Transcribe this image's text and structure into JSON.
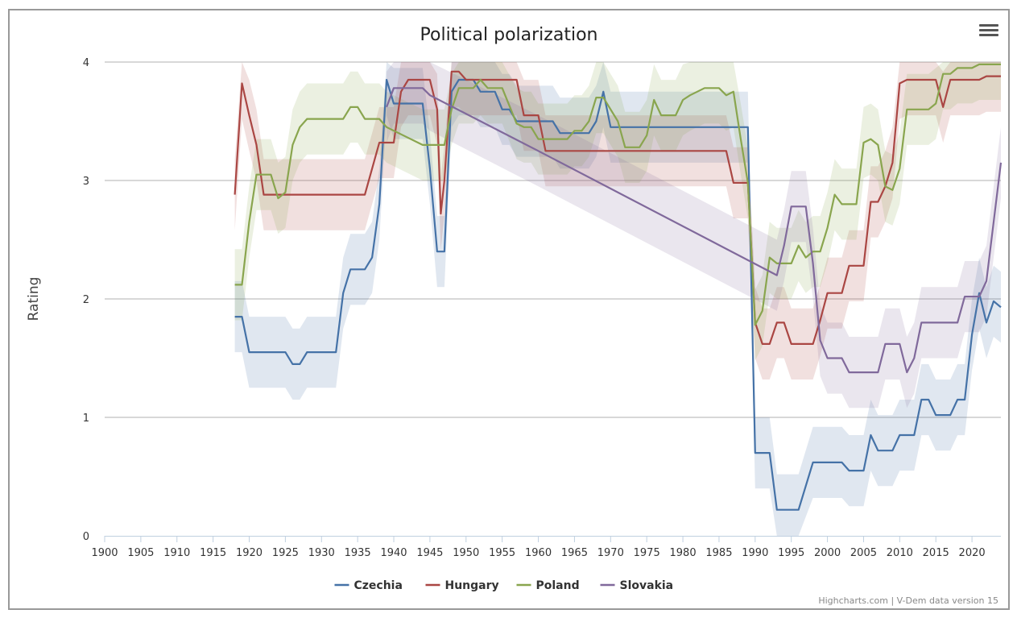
{
  "credits": "Highcharts.com | V-Dem data version 15",
  "menu_icon": "hamburger-menu-icon",
  "chart_data": {
    "type": "line",
    "title": "Political polarization",
    "xlabel": "",
    "ylabel": "Rating",
    "xlim": [
      1900,
      2024
    ],
    "ylim": [
      0,
      4
    ],
    "x_ticks": [
      1900,
      1905,
      1910,
      1915,
      1920,
      1925,
      1930,
      1935,
      1940,
      1945,
      1950,
      1955,
      1960,
      1965,
      1970,
      1975,
      1980,
      1985,
      1990,
      1995,
      2000,
      2005,
      2010,
      2015,
      2020
    ],
    "y_ticks": [
      0,
      1,
      2,
      3,
      4
    ],
    "grid": "horizontal",
    "legend_position": "bottom-center",
    "band_halfwidth": 0.3,
    "series": [
      {
        "name": "Czechia",
        "color": "#4572A7",
        "points": [
          [
            1918,
            1.85
          ],
          [
            1919,
            1.85
          ],
          [
            1920,
            1.55
          ],
          [
            1921,
            1.55
          ],
          [
            1925,
            1.55
          ],
          [
            1926,
            1.45
          ],
          [
            1927,
            1.45
          ],
          [
            1928,
            1.55
          ],
          [
            1932,
            1.55
          ],
          [
            1933,
            2.05
          ],
          [
            1934,
            2.25
          ],
          [
            1936,
            2.25
          ],
          [
            1937,
            2.35
          ],
          [
            1938,
            2.8
          ],
          [
            1939,
            3.85
          ],
          [
            1940,
            3.65
          ],
          [
            1944,
            3.65
          ],
          [
            1945,
            3.1
          ],
          [
            1946,
            2.4
          ],
          [
            1947,
            2.4
          ],
          [
            1948,
            3.75
          ],
          [
            1949,
            3.85
          ],
          [
            1951,
            3.85
          ],
          [
            1952,
            3.75
          ],
          [
            1954,
            3.75
          ],
          [
            1955,
            3.6
          ],
          [
            1956,
            3.6
          ],
          [
            1957,
            3.5
          ],
          [
            1962,
            3.5
          ],
          [
            1963,
            3.4
          ],
          [
            1967,
            3.4
          ],
          [
            1968,
            3.5
          ],
          [
            1969,
            3.75
          ],
          [
            1970,
            3.45
          ],
          [
            1989,
            3.45
          ],
          [
            1990,
            0.7
          ],
          [
            1992,
            0.7
          ],
          [
            1993,
            0.22
          ],
          [
            1996,
            0.22
          ],
          [
            1998,
            0.62
          ],
          [
            2002,
            0.62
          ],
          [
            2003,
            0.55
          ],
          [
            2005,
            0.55
          ],
          [
            2006,
            0.85
          ],
          [
            2007,
            0.72
          ],
          [
            2009,
            0.72
          ],
          [
            2010,
            0.85
          ],
          [
            2012,
            0.85
          ],
          [
            2013,
            1.15
          ],
          [
            2014,
            1.15
          ],
          [
            2015,
            1.02
          ],
          [
            2017,
            1.02
          ],
          [
            2018,
            1.15
          ],
          [
            2019,
            1.15
          ],
          [
            2020,
            1.7
          ],
          [
            2021,
            2.05
          ],
          [
            2022,
            1.8
          ],
          [
            2023,
            1.98
          ],
          [
            2024,
            1.93
          ]
        ]
      },
      {
        "name": "Hungary",
        "color": "#AA4643",
        "points": [
          [
            1918,
            2.88
          ],
          [
            1919,
            3.82
          ],
          [
            1920,
            3.55
          ],
          [
            1921,
            3.3
          ],
          [
            1922,
            2.88
          ],
          [
            1936,
            2.88
          ],
          [
            1937,
            3.1
          ],
          [
            1938,
            3.32
          ],
          [
            1940,
            3.32
          ],
          [
            1941,
            3.75
          ],
          [
            1942,
            3.85
          ],
          [
            1945,
            3.85
          ],
          [
            1946,
            3.6
          ],
          [
            1946.5,
            2.72
          ],
          [
            1947,
            3.0
          ],
          [
            1948,
            3.92
          ],
          [
            1949,
            3.92
          ],
          [
            1950,
            3.85
          ],
          [
            1957,
            3.85
          ],
          [
            1958,
            3.55
          ],
          [
            1960,
            3.55
          ],
          [
            1961,
            3.25
          ],
          [
            1986,
            3.25
          ],
          [
            1987,
            2.98
          ],
          [
            1989,
            2.98
          ],
          [
            1990,
            1.8
          ],
          [
            1991,
            1.62
          ],
          [
            1992,
            1.62
          ],
          [
            1993,
            1.8
          ],
          [
            1994,
            1.8
          ],
          [
            1995,
            1.62
          ],
          [
            1998,
            1.62
          ],
          [
            1999,
            1.82
          ],
          [
            2000,
            2.05
          ],
          [
            2002,
            2.05
          ],
          [
            2003,
            2.28
          ],
          [
            2005,
            2.28
          ],
          [
            2006,
            2.82
          ],
          [
            2007,
            2.82
          ],
          [
            2008,
            2.95
          ],
          [
            2009,
            3.15
          ],
          [
            2010,
            3.82
          ],
          [
            2011,
            3.85
          ],
          [
            2015,
            3.85
          ],
          [
            2016,
            3.62
          ],
          [
            2017,
            3.85
          ],
          [
            2021,
            3.85
          ],
          [
            2022,
            3.88
          ],
          [
            2024,
            3.88
          ]
        ]
      },
      {
        "name": "Poland",
        "color": "#89A54E",
        "points": [
          [
            1918,
            2.12
          ],
          [
            1919,
            2.12
          ],
          [
            1920,
            2.65
          ],
          [
            1921,
            3.05
          ],
          [
            1923,
            3.05
          ],
          [
            1924,
            2.85
          ],
          [
            1925,
            2.9
          ],
          [
            1926,
            3.3
          ],
          [
            1927,
            3.45
          ],
          [
            1928,
            3.52
          ],
          [
            1933,
            3.52
          ],
          [
            1934,
            3.62
          ],
          [
            1935,
            3.62
          ],
          [
            1936,
            3.52
          ],
          [
            1938,
            3.52
          ],
          [
            1939,
            3.45
          ],
          [
            1944,
            3.3
          ],
          [
            1947,
            3.3
          ],
          [
            1948,
            3.6
          ],
          [
            1949,
            3.78
          ],
          [
            1951,
            3.78
          ],
          [
            1952,
            3.85
          ],
          [
            1953,
            3.78
          ],
          [
            1955,
            3.78
          ],
          [
            1957,
            3.48
          ],
          [
            1958,
            3.45
          ],
          [
            1959,
            3.45
          ],
          [
            1960,
            3.35
          ],
          [
            1964,
            3.35
          ],
          [
            1965,
            3.42
          ],
          [
            1966,
            3.42
          ],
          [
            1967,
            3.5
          ],
          [
            1968,
            3.7
          ],
          [
            1969,
            3.7
          ],
          [
            1970,
            3.6
          ],
          [
            1971,
            3.5
          ],
          [
            1972,
            3.28
          ],
          [
            1974,
            3.28
          ],
          [
            1975,
            3.38
          ],
          [
            1976,
            3.68
          ],
          [
            1977,
            3.55
          ],
          [
            1979,
            3.55
          ],
          [
            1980,
            3.68
          ],
          [
            1981,
            3.72
          ],
          [
            1983,
            3.78
          ],
          [
            1985,
            3.78
          ],
          [
            1986,
            3.72
          ],
          [
            1987,
            3.75
          ],
          [
            1988,
            3.35
          ],
          [
            1989,
            2.98
          ],
          [
            1990,
            1.78
          ],
          [
            1991,
            1.9
          ],
          [
            1992,
            2.35
          ],
          [
            1993,
            2.3
          ],
          [
            1995,
            2.3
          ],
          [
            1996,
            2.45
          ],
          [
            1997,
            2.35
          ],
          [
            1998,
            2.4
          ],
          [
            1999,
            2.4
          ],
          [
            2000,
            2.6
          ],
          [
            2001,
            2.88
          ],
          [
            2002,
            2.8
          ],
          [
            2004,
            2.8
          ],
          [
            2005,
            3.32
          ],
          [
            2006,
            3.35
          ],
          [
            2007,
            3.3
          ],
          [
            2008,
            2.95
          ],
          [
            2009,
            2.92
          ],
          [
            2010,
            3.1
          ],
          [
            2011,
            3.6
          ],
          [
            2014,
            3.6
          ],
          [
            2015,
            3.65
          ],
          [
            2016,
            3.9
          ],
          [
            2017,
            3.9
          ],
          [
            2018,
            3.95
          ],
          [
            2020,
            3.95
          ],
          [
            2021,
            3.98
          ],
          [
            2024,
            3.98
          ]
        ]
      },
      {
        "name": "Slovakia",
        "color": "#80699B",
        "points": [
          [
            1939,
            3.62
          ],
          [
            1940,
            3.78
          ],
          [
            1944,
            3.78
          ],
          [
            1945,
            3.72
          ],
          [
            1960,
            3.25
          ],
          [
            1993,
            2.2
          ],
          [
            1994,
            2.45
          ],
          [
            1995,
            2.78
          ],
          [
            1997,
            2.78
          ],
          [
            1998,
            2.3
          ],
          [
            1999,
            1.65
          ],
          [
            2000,
            1.5
          ],
          [
            2002,
            1.5
          ],
          [
            2003,
            1.38
          ],
          [
            2007,
            1.38
          ],
          [
            2008,
            1.62
          ],
          [
            2010,
            1.62
          ],
          [
            2011,
            1.38
          ],
          [
            2012,
            1.5
          ],
          [
            2013,
            1.8
          ],
          [
            2018,
            1.8
          ],
          [
            2019,
            2.02
          ],
          [
            2021,
            2.02
          ],
          [
            2022,
            2.15
          ],
          [
            2024,
            3.15
          ]
        ]
      }
    ]
  }
}
